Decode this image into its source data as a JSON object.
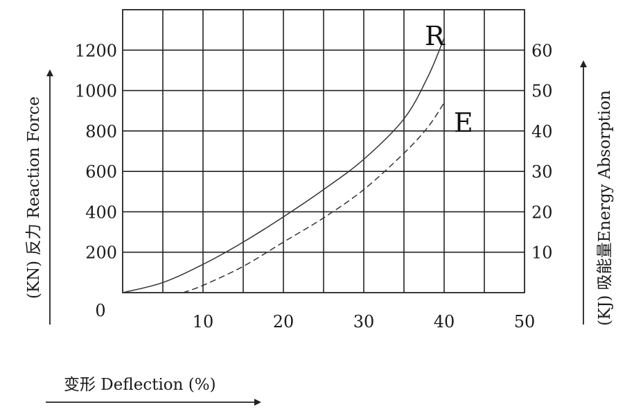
{
  "chart_data": {
    "type": "line",
    "x_axis": {
      "label": "变形 Deflection (%)",
      "range": [
        0,
        50
      ],
      "ticks": [
        "0",
        "10",
        "20",
        "30",
        "40",
        "50"
      ]
    },
    "y_left_axis": {
      "label": "(KN) 反力 Reaction Force",
      "range": [
        0,
        1400
      ],
      "ticks": [
        "200",
        "400",
        "600",
        "800",
        "1000",
        "1200"
      ]
    },
    "y_right_axis": {
      "label": "(KJ) 吸能量Energy Absorption",
      "range": [
        0,
        70
      ],
      "ticks": [
        "10",
        "20",
        "30",
        "40",
        "50",
        "60"
      ]
    },
    "grid": true,
    "series": [
      {
        "name": "R",
        "axis": "left",
        "style": "solid",
        "color": "#333333",
        "x": [
          0,
          5,
          10,
          15,
          20,
          25,
          30,
          35,
          38,
          40
        ],
        "y": [
          0,
          50,
          140,
          250,
          375,
          510,
          660,
          860,
          1070,
          1260
        ]
      },
      {
        "name": "E",
        "axis": "right",
        "style": "dashed",
        "color": "#333333",
        "x": [
          7.5,
          10,
          15,
          20,
          25,
          30,
          35,
          38,
          40
        ],
        "y": [
          0,
          1.8,
          6.5,
          12.5,
          18.5,
          25.5,
          34.5,
          41,
          47
        ]
      }
    ]
  }
}
